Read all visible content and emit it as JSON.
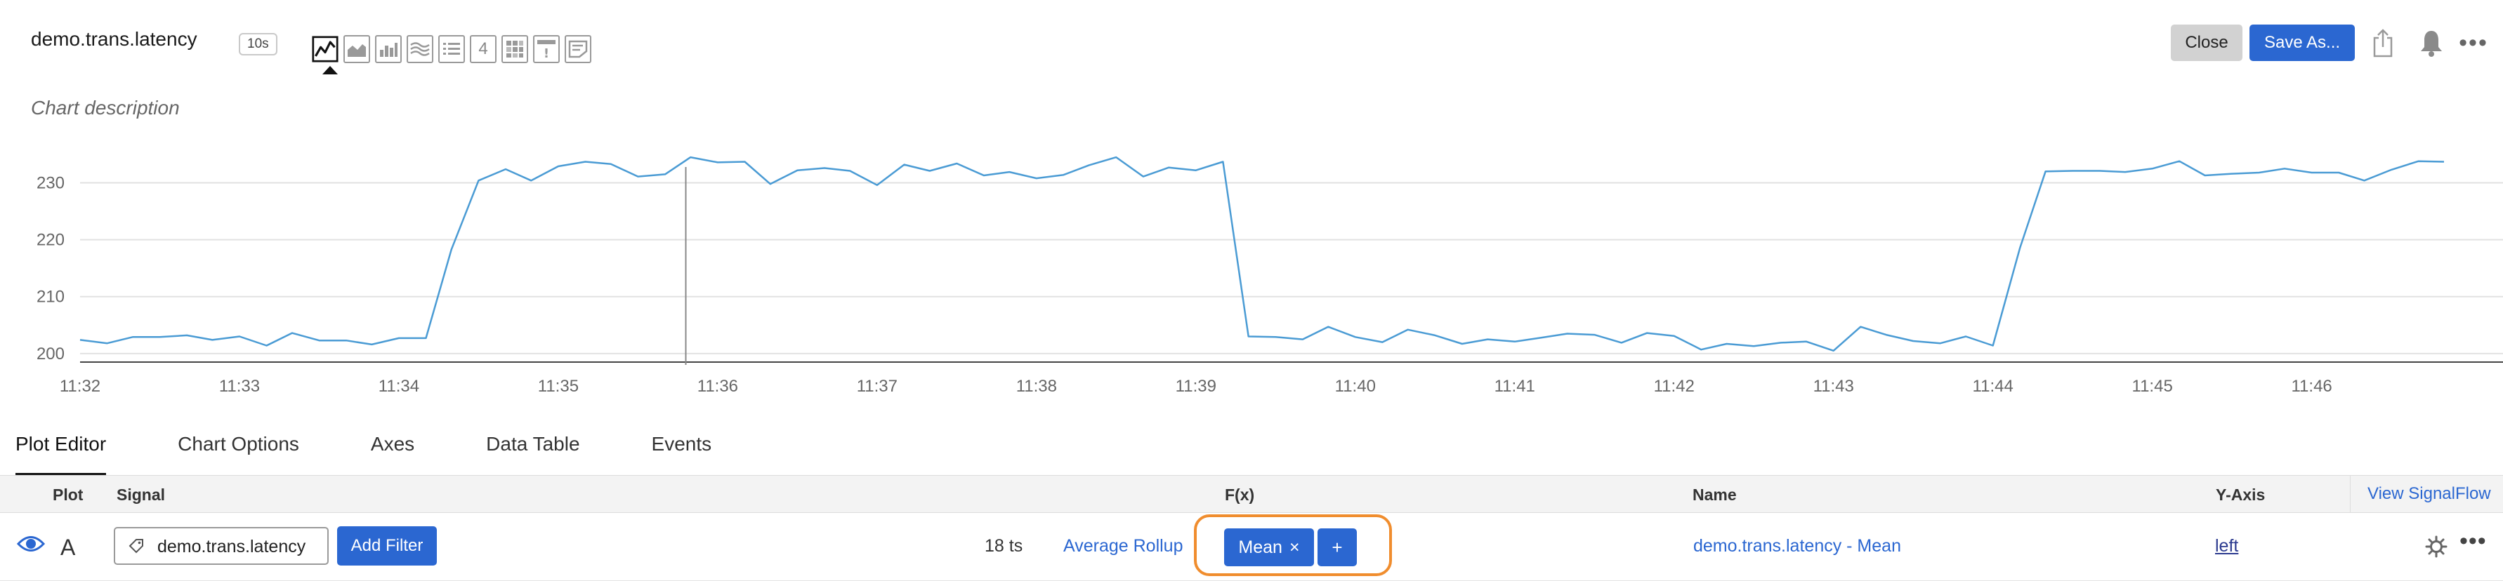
{
  "header": {
    "title": "demo.trans.latency",
    "resolution": "10s",
    "description_placeholder": "Chart description",
    "close_label": "Close",
    "save_as_label": "Save As...",
    "more_label": "•••",
    "toolbar_icons": [
      "line-chart-icon",
      "area-chart-icon",
      "column-chart-icon",
      "histogram-icon",
      "list-icon",
      "single-value-icon",
      "heatmap-icon",
      "event-feed-icon",
      "text-note-icon"
    ],
    "single_value_glyph": "4",
    "event_glyph": "!"
  },
  "chart_data": {
    "type": "line",
    "title": "",
    "xlabel": "",
    "ylabel": "",
    "x_ticks": [
      "11:32",
      "11:33",
      "11:34",
      "11:35",
      "11:36",
      "11:37",
      "11:38",
      "11:39",
      "11:40",
      "11:41",
      "11:42",
      "11:43",
      "11:44",
      "11:45",
      "11:46"
    ],
    "y_ticks": [
      200,
      210,
      220,
      230
    ],
    "ylim": [
      198.5,
      235
    ],
    "xlim": [
      0,
      15.2
    ],
    "grid": true,
    "cursor_x": 3.8,
    "series": [
      {
        "color": "#4a9bd4",
        "points": [
          [
            0.0,
            202.4
          ],
          [
            0.17,
            201.8
          ],
          [
            0.33,
            202.9
          ],
          [
            0.5,
            202.9
          ],
          [
            0.67,
            203.2
          ],
          [
            0.83,
            202.4
          ],
          [
            1.0,
            203.0
          ],
          [
            1.17,
            201.4
          ],
          [
            1.33,
            203.6
          ],
          [
            1.5,
            202.3
          ],
          [
            1.67,
            202.3
          ],
          [
            1.83,
            201.6
          ],
          [
            2.0,
            202.7
          ],
          [
            2.17,
            202.7
          ],
          [
            2.33,
            218.3
          ],
          [
            2.5,
            230.4
          ],
          [
            2.67,
            232.4
          ],
          [
            2.83,
            230.4
          ],
          [
            3.0,
            232.9
          ],
          [
            3.17,
            233.7
          ],
          [
            3.33,
            233.3
          ],
          [
            3.5,
            231.1
          ],
          [
            3.67,
            231.5
          ],
          [
            3.83,
            234.5
          ],
          [
            4.0,
            233.6
          ],
          [
            4.17,
            233.7
          ],
          [
            4.33,
            229.8
          ],
          [
            4.5,
            232.2
          ],
          [
            4.67,
            232.6
          ],
          [
            4.83,
            232.1
          ],
          [
            5.0,
            229.6
          ],
          [
            5.17,
            233.2
          ],
          [
            5.33,
            232.1
          ],
          [
            5.5,
            233.4
          ],
          [
            5.67,
            231.3
          ],
          [
            5.83,
            231.9
          ],
          [
            6.0,
            230.8
          ],
          [
            6.17,
            231.4
          ],
          [
            6.33,
            233.1
          ],
          [
            6.5,
            234.5
          ],
          [
            6.67,
            231.1
          ],
          [
            6.83,
            232.7
          ],
          [
            7.0,
            232.2
          ],
          [
            7.17,
            233.7
          ],
          [
            7.33,
            203.0
          ],
          [
            7.5,
            202.9
          ],
          [
            7.67,
            202.5
          ],
          [
            7.83,
            204.7
          ],
          [
            8.0,
            202.9
          ],
          [
            8.17,
            202.0
          ],
          [
            8.33,
            204.2
          ],
          [
            8.5,
            203.2
          ],
          [
            8.67,
            201.7
          ],
          [
            8.83,
            202.5
          ],
          [
            9.0,
            202.1
          ],
          [
            9.17,
            202.8
          ],
          [
            9.33,
            203.5
          ],
          [
            9.5,
            203.3
          ],
          [
            9.67,
            201.9
          ],
          [
            9.83,
            203.6
          ],
          [
            10.0,
            203.1
          ],
          [
            10.17,
            200.7
          ],
          [
            10.33,
            201.7
          ],
          [
            10.5,
            201.3
          ],
          [
            10.67,
            201.9
          ],
          [
            10.83,
            202.1
          ],
          [
            11.0,
            200.5
          ],
          [
            11.17,
            204.7
          ],
          [
            11.33,
            203.3
          ],
          [
            11.5,
            202.2
          ],
          [
            11.67,
            201.8
          ],
          [
            11.83,
            203.0
          ],
          [
            12.0,
            201.4
          ],
          [
            12.17,
            218.6
          ],
          [
            12.33,
            232.0
          ],
          [
            12.5,
            232.1
          ],
          [
            12.67,
            232.1
          ],
          [
            12.83,
            231.9
          ],
          [
            13.0,
            232.5
          ],
          [
            13.17,
            233.8
          ],
          [
            13.33,
            231.3
          ],
          [
            13.5,
            231.6
          ],
          [
            13.67,
            231.8
          ],
          [
            13.83,
            232.5
          ],
          [
            14.0,
            231.8
          ],
          [
            14.17,
            231.8
          ],
          [
            14.33,
            230.4
          ],
          [
            14.5,
            232.3
          ],
          [
            14.67,
            233.8
          ],
          [
            14.83,
            233.7
          ]
        ]
      }
    ]
  },
  "tabs": [
    "Plot Editor",
    "Chart Options",
    "Axes",
    "Data Table",
    "Events"
  ],
  "table": {
    "headers": {
      "plot": "Plot",
      "signal": "Signal",
      "fx": "F(x)",
      "name": "Name",
      "yaxis": "Y-Axis",
      "view_signalflow": "View SignalFlow"
    },
    "row": {
      "letter": "A",
      "signal": "demo.trans.latency",
      "add_filter_label": "Add Filter",
      "ts_count": "18 ts",
      "rollup": "Average Rollup",
      "fx_chip": "Mean",
      "fx_chip_remove": "×",
      "fx_add": "+",
      "name": "demo.trans.latency - Mean",
      "yaxis": "left",
      "more_label": "•••"
    }
  }
}
